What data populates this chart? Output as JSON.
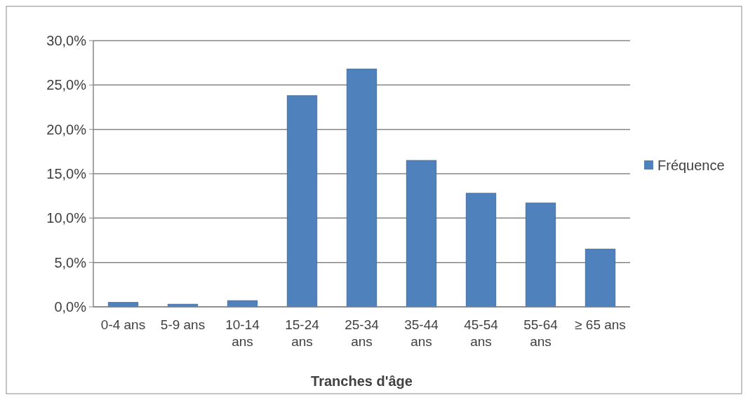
{
  "chart_data": {
    "type": "bar",
    "xlabel": "Tranches d'âge",
    "categories": [
      "0-4 ans",
      "5-9 ans",
      "10-14 ans",
      "15-24 ans",
      "25-34 ans",
      "35-44 ans",
      "45-54 ans",
      "55-64 ans",
      "≥ 65 ans"
    ],
    "series": [
      {
        "name": "Fréquence",
        "color": "#4f81bd",
        "values": [
          0.5,
          0.3,
          0.7,
          23.8,
          26.8,
          16.5,
          12.8,
          11.7,
          6.5
        ]
      }
    ],
    "ylim": [
      0,
      30
    ],
    "yticks": [
      {
        "value": 0,
        "label": "0,0%"
      },
      {
        "value": 5,
        "label": "5,0%"
      },
      {
        "value": 10,
        "label": "10,0%"
      },
      {
        "value": 15,
        "label": "15,0%"
      },
      {
        "value": 20,
        "label": "20,0%"
      },
      {
        "value": 25,
        "label": "25,0%"
      },
      {
        "value": 30,
        "label": "30,0%"
      }
    ],
    "grid": "y",
    "legend": "right"
  }
}
